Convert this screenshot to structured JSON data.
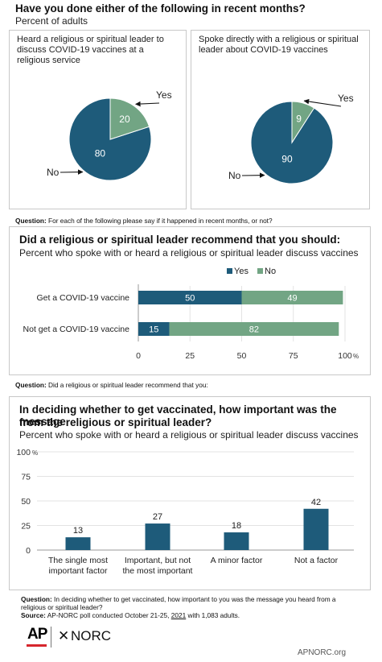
{
  "header": {
    "title": "Have you done either of the following in recent months?",
    "subtitle": "Percent of adults"
  },
  "pies": {
    "left_title": "Heard a religious or spiritual leader to discuss COVID-19 vaccines at a religious service",
    "right_title": "Spoke directly with a religious or spiritual leader about COVID-19 vaccines",
    "yes_label": "Yes",
    "no_label": "No"
  },
  "note1": {
    "label": "Question:",
    "text": " For each of the following please say if it happened in recent months, or not?"
  },
  "bars": {
    "title": "Did a religious or spiritual leader recommend that you should:",
    "subtitle": "Percent who spoke with or heard a religious or spiritual leader discuss vaccines",
    "pct_label": "%"
  },
  "note2": {
    "label": "Question:",
    "text": " Did a religious or spiritual leader recommend that you:"
  },
  "columns": {
    "title_line1": "In deciding whether to get vaccinated, how important was the message",
    "title_line2": "from the religious or spiritual leader?",
    "subtitle": "Percent who spoke with or heard a religious or spiritual leader discuss vaccines",
    "pct_label": "%"
  },
  "note3": {
    "label": "Question:",
    "text": " In deciding whether to get vaccinated, how important to you was the message you heard from a religious or spiritual leader?",
    "source_label": "Source:",
    "source_pre": " AP-NORC poll conducted October 21-25, ",
    "source_year": "2021",
    "source_post": " with 1,083 adults."
  },
  "footer": {
    "ap_logo": "AP",
    "norc_logo": "NORC",
    "url": "APNORC.org"
  },
  "colors": {
    "dark": "#1e5b7a",
    "light": "#72a584",
    "axis": "#999999"
  },
  "chart_data": [
    {
      "type": "pie",
      "title": "Heard a religious or spiritual leader to discuss COVID-19 vaccines at a religious service",
      "categories": [
        "Yes",
        "No"
      ],
      "values": [
        20,
        80
      ]
    },
    {
      "type": "pie",
      "title": "Spoke directly with a religious or spiritual leader about COVID-19 vaccines",
      "categories": [
        "Yes",
        "No"
      ],
      "values": [
        9,
        90
      ]
    },
    {
      "type": "bar",
      "orientation": "horizontal",
      "stacked": true,
      "title": "Did a religious or spiritual leader recommend that you should:",
      "subtitle": "Percent who spoke with or heard a religious or spiritual leader discuss vaccines",
      "categories": [
        "Get a COVID-19 vaccine",
        "Not get a COVID-19 vaccine"
      ],
      "series": [
        {
          "name": "Yes",
          "values": [
            50,
            15
          ]
        },
        {
          "name": "No",
          "values": [
            49,
            82
          ]
        }
      ],
      "xlim": [
        0,
        100
      ],
      "xticks": [
        "0",
        "25",
        "50",
        "75",
        "100"
      ],
      "legend": "top-right"
    },
    {
      "type": "bar",
      "title": "In deciding whether to get vaccinated, how important was the message from the religious or spiritual leader?",
      "subtitle": "Percent who spoke with or heard a religious or spiritual leader discuss vaccines",
      "categories": [
        [
          "The single most",
          "important factor"
        ],
        [
          "Important, but not",
          "the most important"
        ],
        [
          "A minor factor"
        ],
        [
          "Not a factor"
        ]
      ],
      "values": [
        13,
        27,
        18,
        42
      ],
      "ylim": [
        0,
        100
      ],
      "yticks": [
        "0",
        "25",
        "50",
        "75",
        "100"
      ]
    }
  ]
}
